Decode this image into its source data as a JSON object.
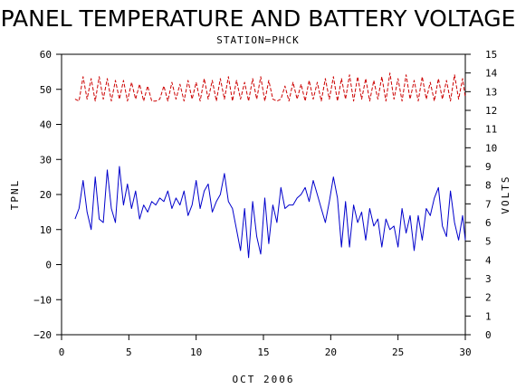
{
  "chart_data": {
    "type": "line",
    "title": "PANEL TEMPERATURE AND BATTERY VOLTAGE",
    "subtitle": "STATION=PHCK",
    "xlabel": "OCT 2006",
    "ylabel": "TPNL",
    "y2label": "VOLTS",
    "xlim": [
      0,
      30
    ],
    "ylim": [
      -20,
      60
    ],
    "y2lim": [
      0,
      15
    ],
    "x_ticks": [
      0,
      5,
      10,
      15,
      20,
      25,
      30
    ],
    "y_ticks": [
      -20,
      -10,
      0,
      10,
      20,
      30,
      40,
      50,
      60
    ],
    "y2_ticks": [
      0,
      1,
      2,
      3,
      4,
      5,
      6,
      7,
      8,
      9,
      10,
      11,
      12,
      13,
      14,
      15
    ],
    "grid": false,
    "series": [
      {
        "axis": "left",
        "color": "#0000cc",
        "style": "solid",
        "x": [
          1.0,
          1.3,
          1.6,
          1.9,
          2.2,
          2.5,
          2.8,
          3.1,
          3.4,
          3.7,
          4.0,
          4.3,
          4.6,
          4.9,
          5.2,
          5.5,
          5.8,
          6.1,
          6.4,
          6.7,
          7.0,
          7.3,
          7.6,
          7.9,
          8.2,
          8.5,
          8.8,
          9.1,
          9.4,
          9.7,
          10.0,
          10.3,
          10.6,
          10.9,
          11.2,
          11.5,
          11.8,
          12.1,
          12.4,
          12.7,
          13.0,
          13.3,
          13.6,
          13.9,
          14.2,
          14.5,
          14.8,
          15.1,
          15.4,
          15.7,
          16.0,
          16.3,
          16.6,
          16.9,
          17.2,
          17.5,
          17.8,
          18.1,
          18.4,
          18.7,
          19.0,
          19.3,
          19.6,
          19.9,
          20.2,
          20.5,
          20.8,
          21.1,
          21.4,
          21.7,
          22.0,
          22.3,
          22.6,
          22.9,
          23.2,
          23.5,
          23.8,
          24.1,
          24.4,
          24.7,
          25.0,
          25.3,
          25.6,
          25.9,
          26.2,
          26.5,
          26.8,
          27.1,
          27.4,
          27.7,
          28.0,
          28.3,
          28.6,
          28.9,
          29.2,
          29.5,
          29.8,
          30.0
        ],
        "y": [
          13,
          16,
          24,
          15,
          10,
          25,
          13,
          12,
          27,
          16,
          12,
          28,
          17,
          23,
          16,
          21,
          13,
          17,
          15,
          18,
          17,
          19,
          18,
          21,
          16,
          19,
          17,
          21,
          14,
          17,
          24,
          16,
          21,
          23,
          15,
          18,
          20,
          26,
          18,
          16,
          10,
          4,
          16,
          2,
          18,
          8,
          3,
          19,
          6,
          17,
          12,
          22,
          16,
          17,
          17,
          19,
          20,
          22,
          18,
          24,
          20,
          16,
          12,
          18,
          25,
          19,
          5,
          18,
          5,
          17,
          12,
          15,
          7,
          16,
          11,
          13,
          5,
          13,
          10,
          11,
          5,
          16,
          9,
          14,
          4,
          14,
          7,
          16,
          14,
          19,
          22,
          11,
          8,
          21,
          12,
          7,
          14,
          7
        ]
      },
      {
        "axis": "right",
        "color": "#cc0000",
        "style": "dashed",
        "x": [
          1.0,
          1.3,
          1.6,
          1.9,
          2.2,
          2.5,
          2.8,
          3.1,
          3.4,
          3.7,
          4.0,
          4.3,
          4.6,
          4.9,
          5.2,
          5.5,
          5.8,
          6.1,
          6.4,
          6.7,
          7.0,
          7.3,
          7.6,
          7.9,
          8.2,
          8.5,
          8.8,
          9.1,
          9.4,
          9.7,
          10.0,
          10.3,
          10.6,
          10.9,
          11.2,
          11.5,
          11.8,
          12.1,
          12.4,
          12.7,
          13.0,
          13.3,
          13.6,
          13.9,
          14.2,
          14.5,
          14.8,
          15.1,
          15.4,
          15.7,
          16.0,
          16.3,
          16.6,
          16.9,
          17.2,
          17.5,
          17.8,
          18.1,
          18.4,
          18.7,
          19.0,
          19.3,
          19.6,
          19.9,
          20.2,
          20.5,
          20.8,
          21.1,
          21.4,
          21.7,
          22.0,
          22.3,
          22.6,
          22.9,
          23.2,
          23.5,
          23.8,
          24.1,
          24.4,
          24.7,
          25.0,
          25.3,
          25.6,
          25.9,
          26.2,
          26.5,
          26.8,
          27.1,
          27.4,
          27.7,
          28.0,
          28.3,
          28.6,
          28.9,
          29.2,
          29.5,
          29.8,
          30.0
        ],
        "y": [
          12.6,
          12.5,
          13.8,
          12.6,
          13.7,
          12.5,
          13.8,
          12.6,
          13.7,
          12.5,
          13.6,
          12.6,
          13.6,
          12.5,
          13.5,
          12.6,
          13.4,
          12.5,
          13.3,
          12.5,
          12.5,
          12.6,
          13.3,
          12.5,
          13.5,
          12.6,
          13.4,
          12.5,
          13.6,
          12.6,
          13.5,
          12.5,
          13.7,
          12.6,
          13.6,
          12.5,
          13.7,
          12.6,
          13.8,
          12.5,
          13.6,
          12.6,
          13.5,
          12.5,
          13.7,
          12.6,
          13.8,
          12.5,
          13.6,
          12.6,
          12.5,
          12.6,
          13.3,
          12.5,
          13.5,
          12.6,
          13.4,
          12.5,
          13.6,
          12.6,
          13.5,
          12.5,
          13.7,
          12.6,
          13.8,
          12.5,
          13.7,
          12.6,
          13.9,
          12.5,
          13.8,
          12.6,
          13.7,
          12.5,
          13.6,
          12.6,
          13.8,
          12.5,
          14.0,
          12.6,
          13.7,
          12.5,
          13.9,
          12.6,
          13.6,
          12.5,
          13.8,
          12.6,
          13.5,
          12.5,
          13.7,
          12.6,
          13.6,
          12.5,
          13.9,
          12.6,
          13.7,
          12.7
        ]
      }
    ]
  }
}
